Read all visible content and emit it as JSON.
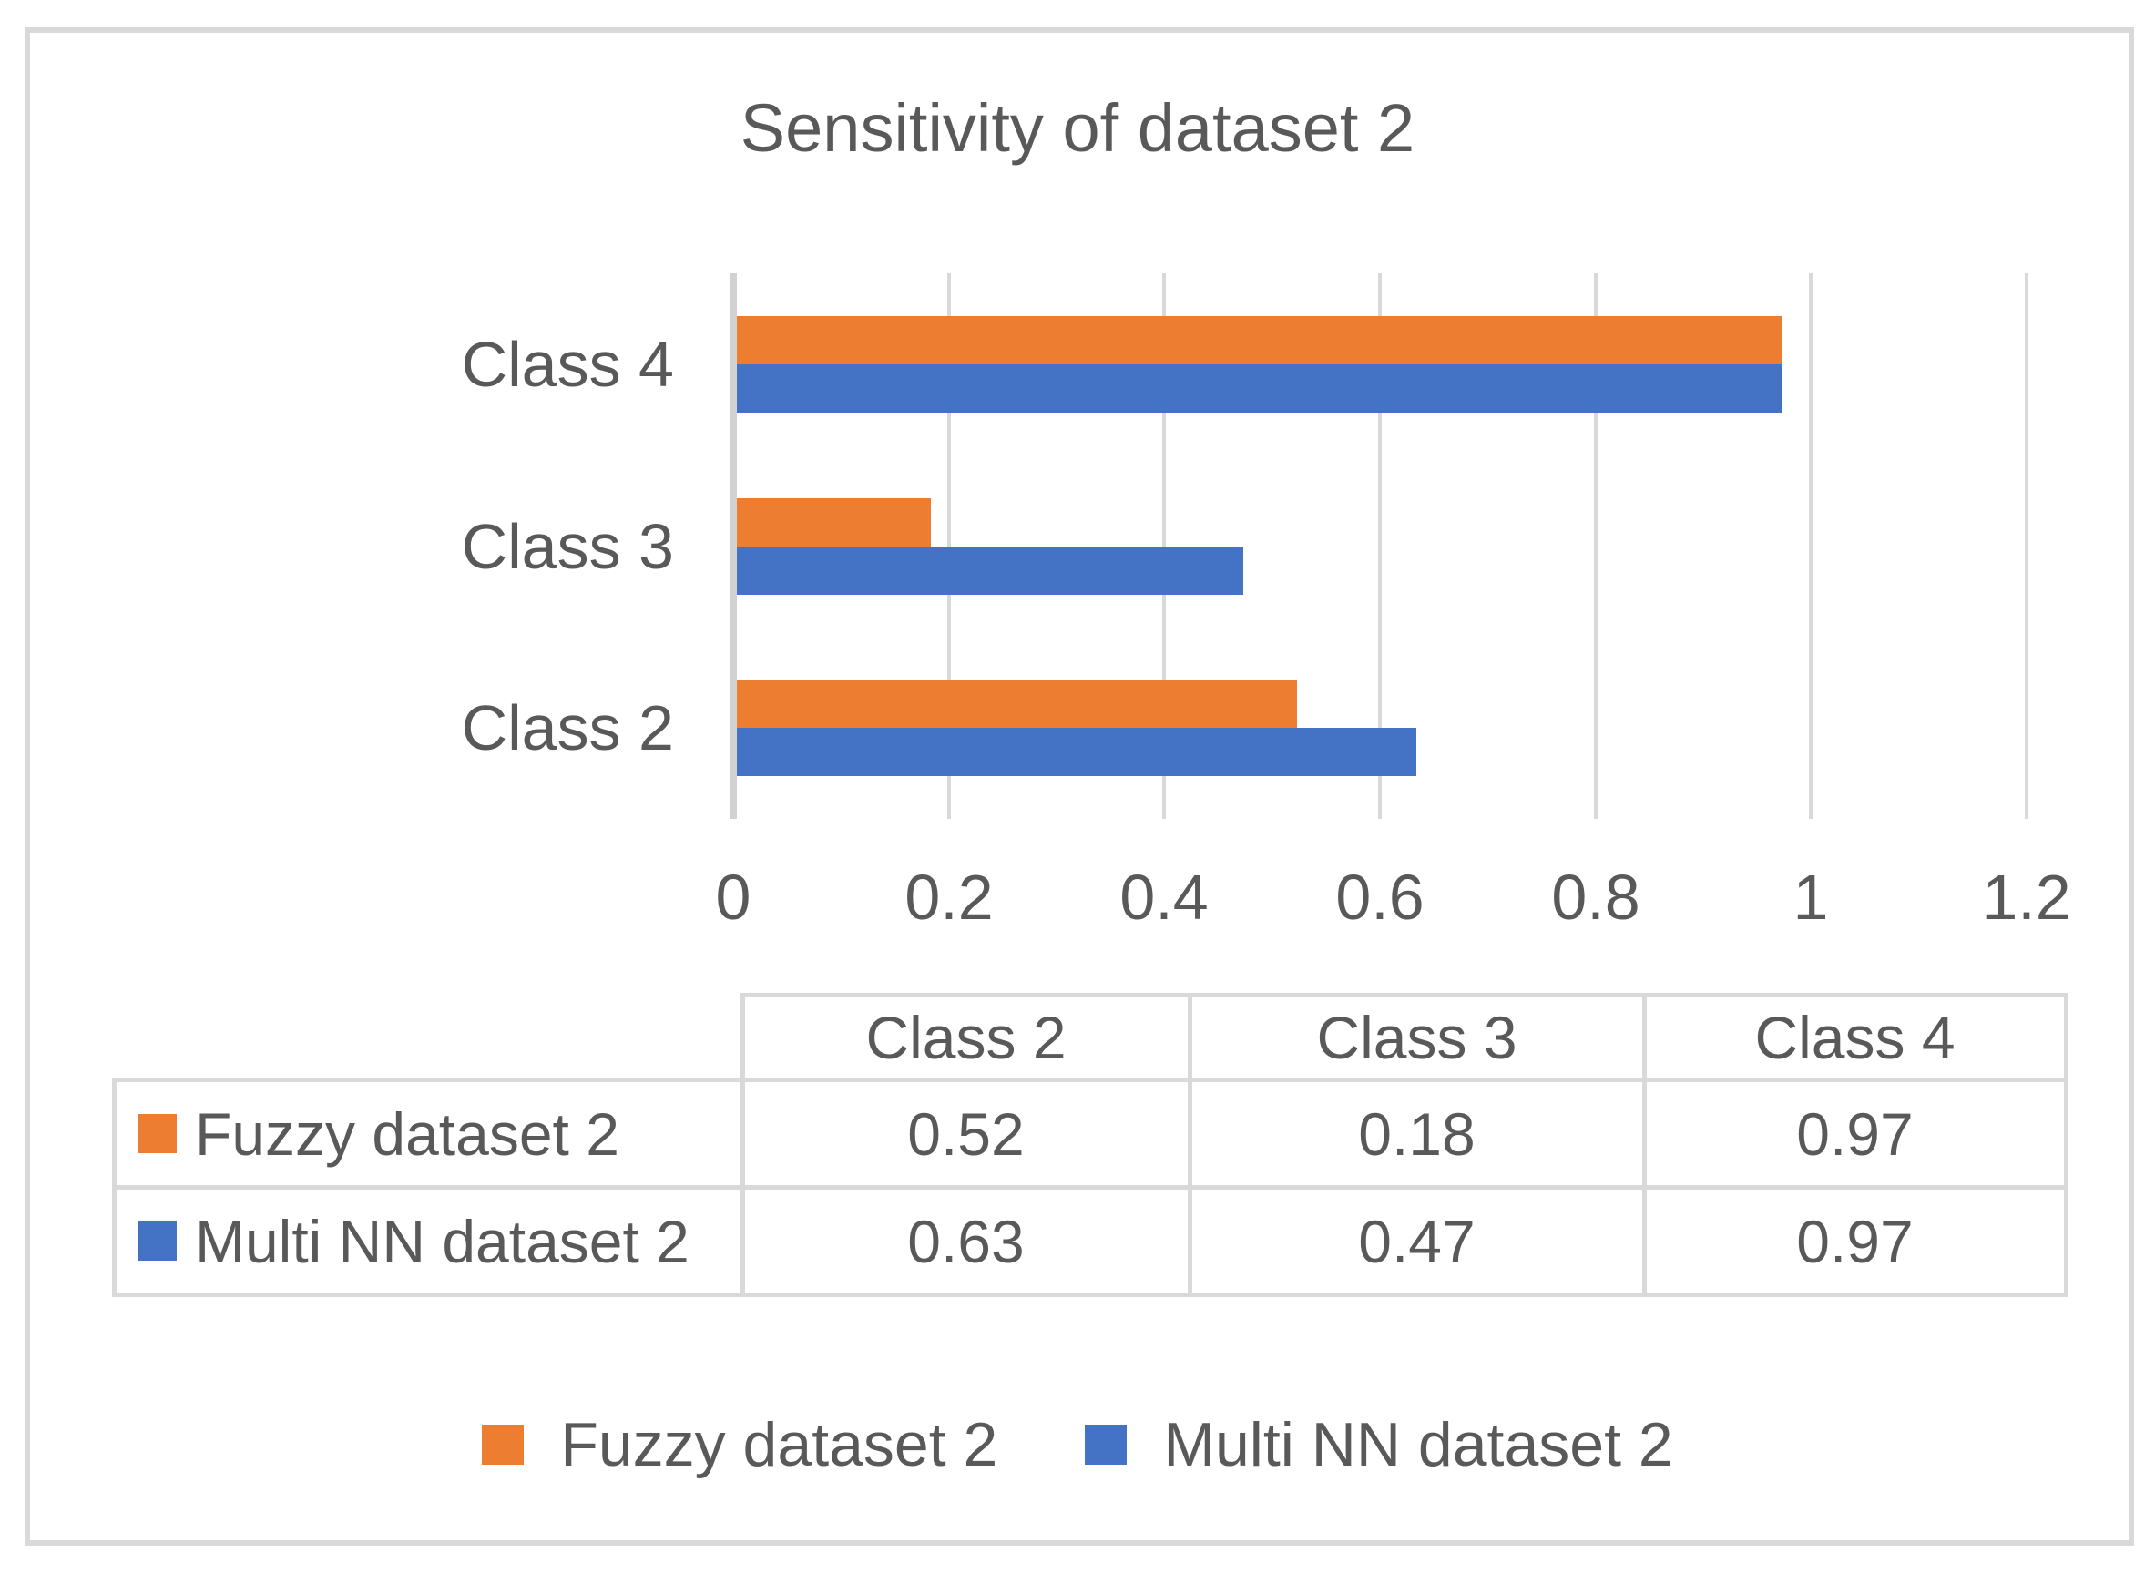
{
  "colors": {
    "text": "#595959",
    "gridline": "#D9D9D9",
    "axis_line": "#D2D2D2",
    "table_border": "#D9D9D9",
    "frame_border": "#D9D9D9",
    "background": "#FFFFFF",
    "series1": "#ED7D31",
    "series2": "#4472C4"
  },
  "chart_data": {
    "type": "bar",
    "orientation": "horizontal",
    "title": "Sensitivity of dataset 2",
    "categories": [
      "Class 2",
      "Class 3",
      "Class 4"
    ],
    "category_display_order_top_to_bottom": [
      "Class 4",
      "Class 3",
      "Class 2"
    ],
    "series": [
      {
        "name": "Fuzzy dataset 2",
        "color": "#ED7D31",
        "values": [
          0.52,
          0.18,
          0.97
        ]
      },
      {
        "name": "Multi NN dataset 2",
        "color": "#4472C4",
        "values": [
          0.63,
          0.47,
          0.97
        ]
      }
    ],
    "xlabel": "",
    "ylabel": "",
    "xlim": [
      0,
      1.2
    ],
    "x_ticks": [
      0,
      0.2,
      0.4,
      0.6,
      0.8,
      1,
      1.2
    ],
    "x_tick_labels": [
      "0",
      "0.2",
      "0.4",
      "0.6",
      "0.8",
      "1",
      "1.2"
    ],
    "grid": true,
    "legend_position": "bottom"
  },
  "data_table": {
    "corner": "",
    "column_headers": [
      "Class 2",
      "Class 3",
      "Class 4"
    ],
    "rows": [
      {
        "label": "Fuzzy dataset 2",
        "swatch_color": "#ED7D31",
        "values": [
          "0.52",
          "0.18",
          "0.97"
        ]
      },
      {
        "label": "Multi NN dataset 2",
        "swatch_color": "#4472C4",
        "values": [
          "0.63",
          "0.47",
          "0.97"
        ]
      }
    ]
  },
  "legend": {
    "items": [
      {
        "label": "Fuzzy dataset 2",
        "color": "#ED7D31"
      },
      {
        "label": "Multi NN dataset 2",
        "color": "#4472C4"
      }
    ]
  }
}
